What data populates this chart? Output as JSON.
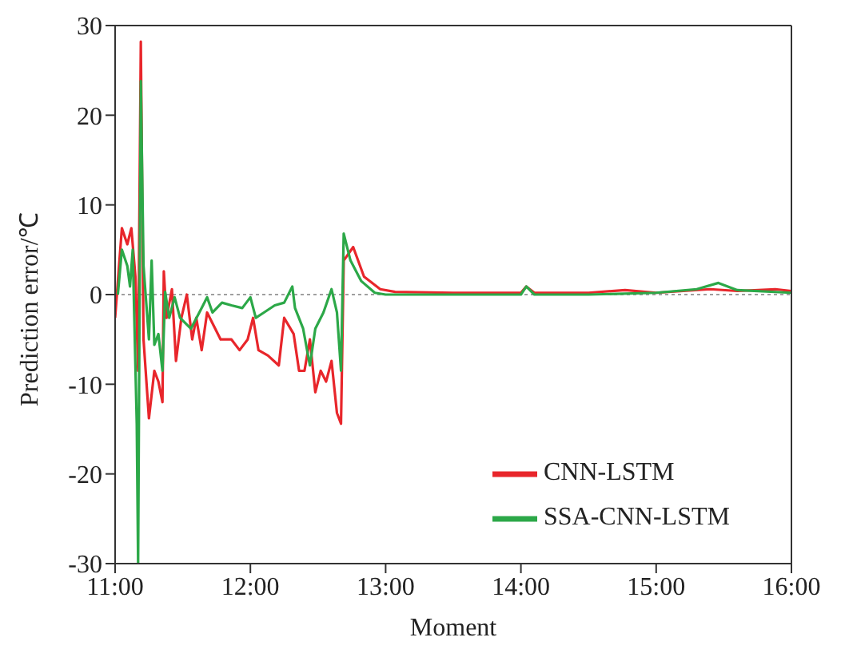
{
  "chart_data": {
    "type": "line",
    "xlabel": "Moment",
    "ylabel": "Prediction error/℃",
    "xlim": [
      11,
      16
    ],
    "xticks": [
      {
        "value": 11,
        "label": "11:00"
      },
      {
        "value": 12,
        "label": "12:00"
      },
      {
        "value": 13,
        "label": "13:00"
      },
      {
        "value": 14,
        "label": "14:00"
      },
      {
        "value": 15,
        "label": "15:00"
      },
      {
        "value": 16,
        "label": "16:00"
      }
    ],
    "ylim": [
      -30,
      30
    ],
    "yticks": [
      -30,
      -20,
      -10,
      0,
      10,
      20,
      30
    ],
    "legend": "bottom right",
    "marker": "none",
    "line_style": "solid",
    "ref_lines": [
      {
        "axis": "y",
        "value": 0,
        "color": "#808080",
        "line_style": "dotted"
      }
    ],
    "series": [
      {
        "name": "CNN-LSTM",
        "color": "#e8262b",
        "x": [
          11.0,
          11.05,
          11.09,
          11.12,
          11.15,
          11.17,
          11.19,
          11.21,
          11.25,
          11.29,
          11.32,
          11.35,
          11.36,
          11.38,
          11.42,
          11.45,
          11.49,
          11.53,
          11.57,
          11.6,
          11.64,
          11.68,
          11.72,
          11.78,
          11.86,
          11.92,
          11.98,
          12.02,
          12.06,
          12.13,
          12.21,
          12.25,
          12.32,
          12.36,
          12.4,
          12.44,
          12.48,
          12.52,
          12.56,
          12.6,
          12.64,
          12.67,
          12.69,
          12.76,
          12.84,
          12.96,
          13.07,
          13.5,
          14.0,
          14.04,
          14.1,
          14.5,
          14.77,
          15.0,
          15.4,
          15.6,
          15.88,
          16.0
        ],
        "values": [
          -2.6,
          7.4,
          5.6,
          7.4,
          2,
          -8.5,
          28.2,
          -5,
          -13.8,
          -8.5,
          -9.7,
          -12,
          2.6,
          -2.6,
          0.6,
          -7.4,
          -2.6,
          0,
          -5,
          -2.6,
          -6.2,
          -2,
          -3.2,
          -5,
          -5,
          -6.2,
          -5,
          -2.6,
          -6.2,
          -6.8,
          -7.9,
          -2.6,
          -4.4,
          -8.5,
          -8.5,
          -5,
          -10.9,
          -8.5,
          -9.7,
          -7.4,
          -13.2,
          -14.4,
          3.8,
          5.3,
          2,
          0.6,
          0.3,
          0.2,
          0.2,
          0.9,
          0.2,
          0.2,
          0.5,
          0.2,
          0.6,
          0.4,
          0.6,
          0.4
        ]
      },
      {
        "name": "SSA-CNN-LSTM",
        "color": "#2ca848",
        "x": [
          11.02,
          11.05,
          11.09,
          11.11,
          11.13,
          11.16,
          11.17,
          11.19,
          11.21,
          11.25,
          11.27,
          11.29,
          11.32,
          11.35,
          11.37,
          11.4,
          11.44,
          11.48,
          11.56,
          11.64,
          11.68,
          11.72,
          11.79,
          11.86,
          11.94,
          12.0,
          12.04,
          12.1,
          12.18,
          12.25,
          12.31,
          12.33,
          12.39,
          12.44,
          12.48,
          12.54,
          12.6,
          12.64,
          12.67,
          12.69,
          12.74,
          12.82,
          12.92,
          13.0,
          13.5,
          14.0,
          14.04,
          14.1,
          14.5,
          15.0,
          15.3,
          15.46,
          15.6,
          16.0
        ],
        "values": [
          0,
          5,
          3.2,
          0.9,
          5,
          -14.4,
          -30,
          23.8,
          3.2,
          -5,
          3.8,
          -5.6,
          -4.4,
          -8.5,
          0.3,
          -2.6,
          -0.3,
          -2.6,
          -3.8,
          -1.5,
          -0.3,
          -2,
          -0.9,
          -1.2,
          -1.5,
          -0.3,
          -2.6,
          -2,
          -1.2,
          -0.9,
          0.9,
          -1.5,
          -3.8,
          -7.9,
          -3.8,
          -2,
          0.6,
          -2,
          -8.5,
          6.8,
          3.8,
          1.5,
          0.2,
          0,
          0,
          0,
          0.9,
          0,
          0,
          0.2,
          0.6,
          1.3,
          0.5,
          0.2
        ]
      }
    ]
  }
}
